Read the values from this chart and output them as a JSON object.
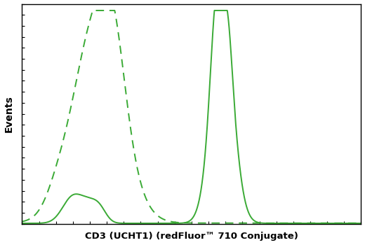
{
  "title": "",
  "xlabel": "CD3 (UCHT1) (redFluor™ 710 Conjugate)",
  "ylabel": "Events",
  "line_color": "#3aaa35",
  "background_color": "#ffffff",
  "xlim": [
    0,
    1000
  ],
  "ylim": [
    0,
    1000
  ],
  "figsize": [
    5.2,
    3.5
  ],
  "dpi": 100
}
